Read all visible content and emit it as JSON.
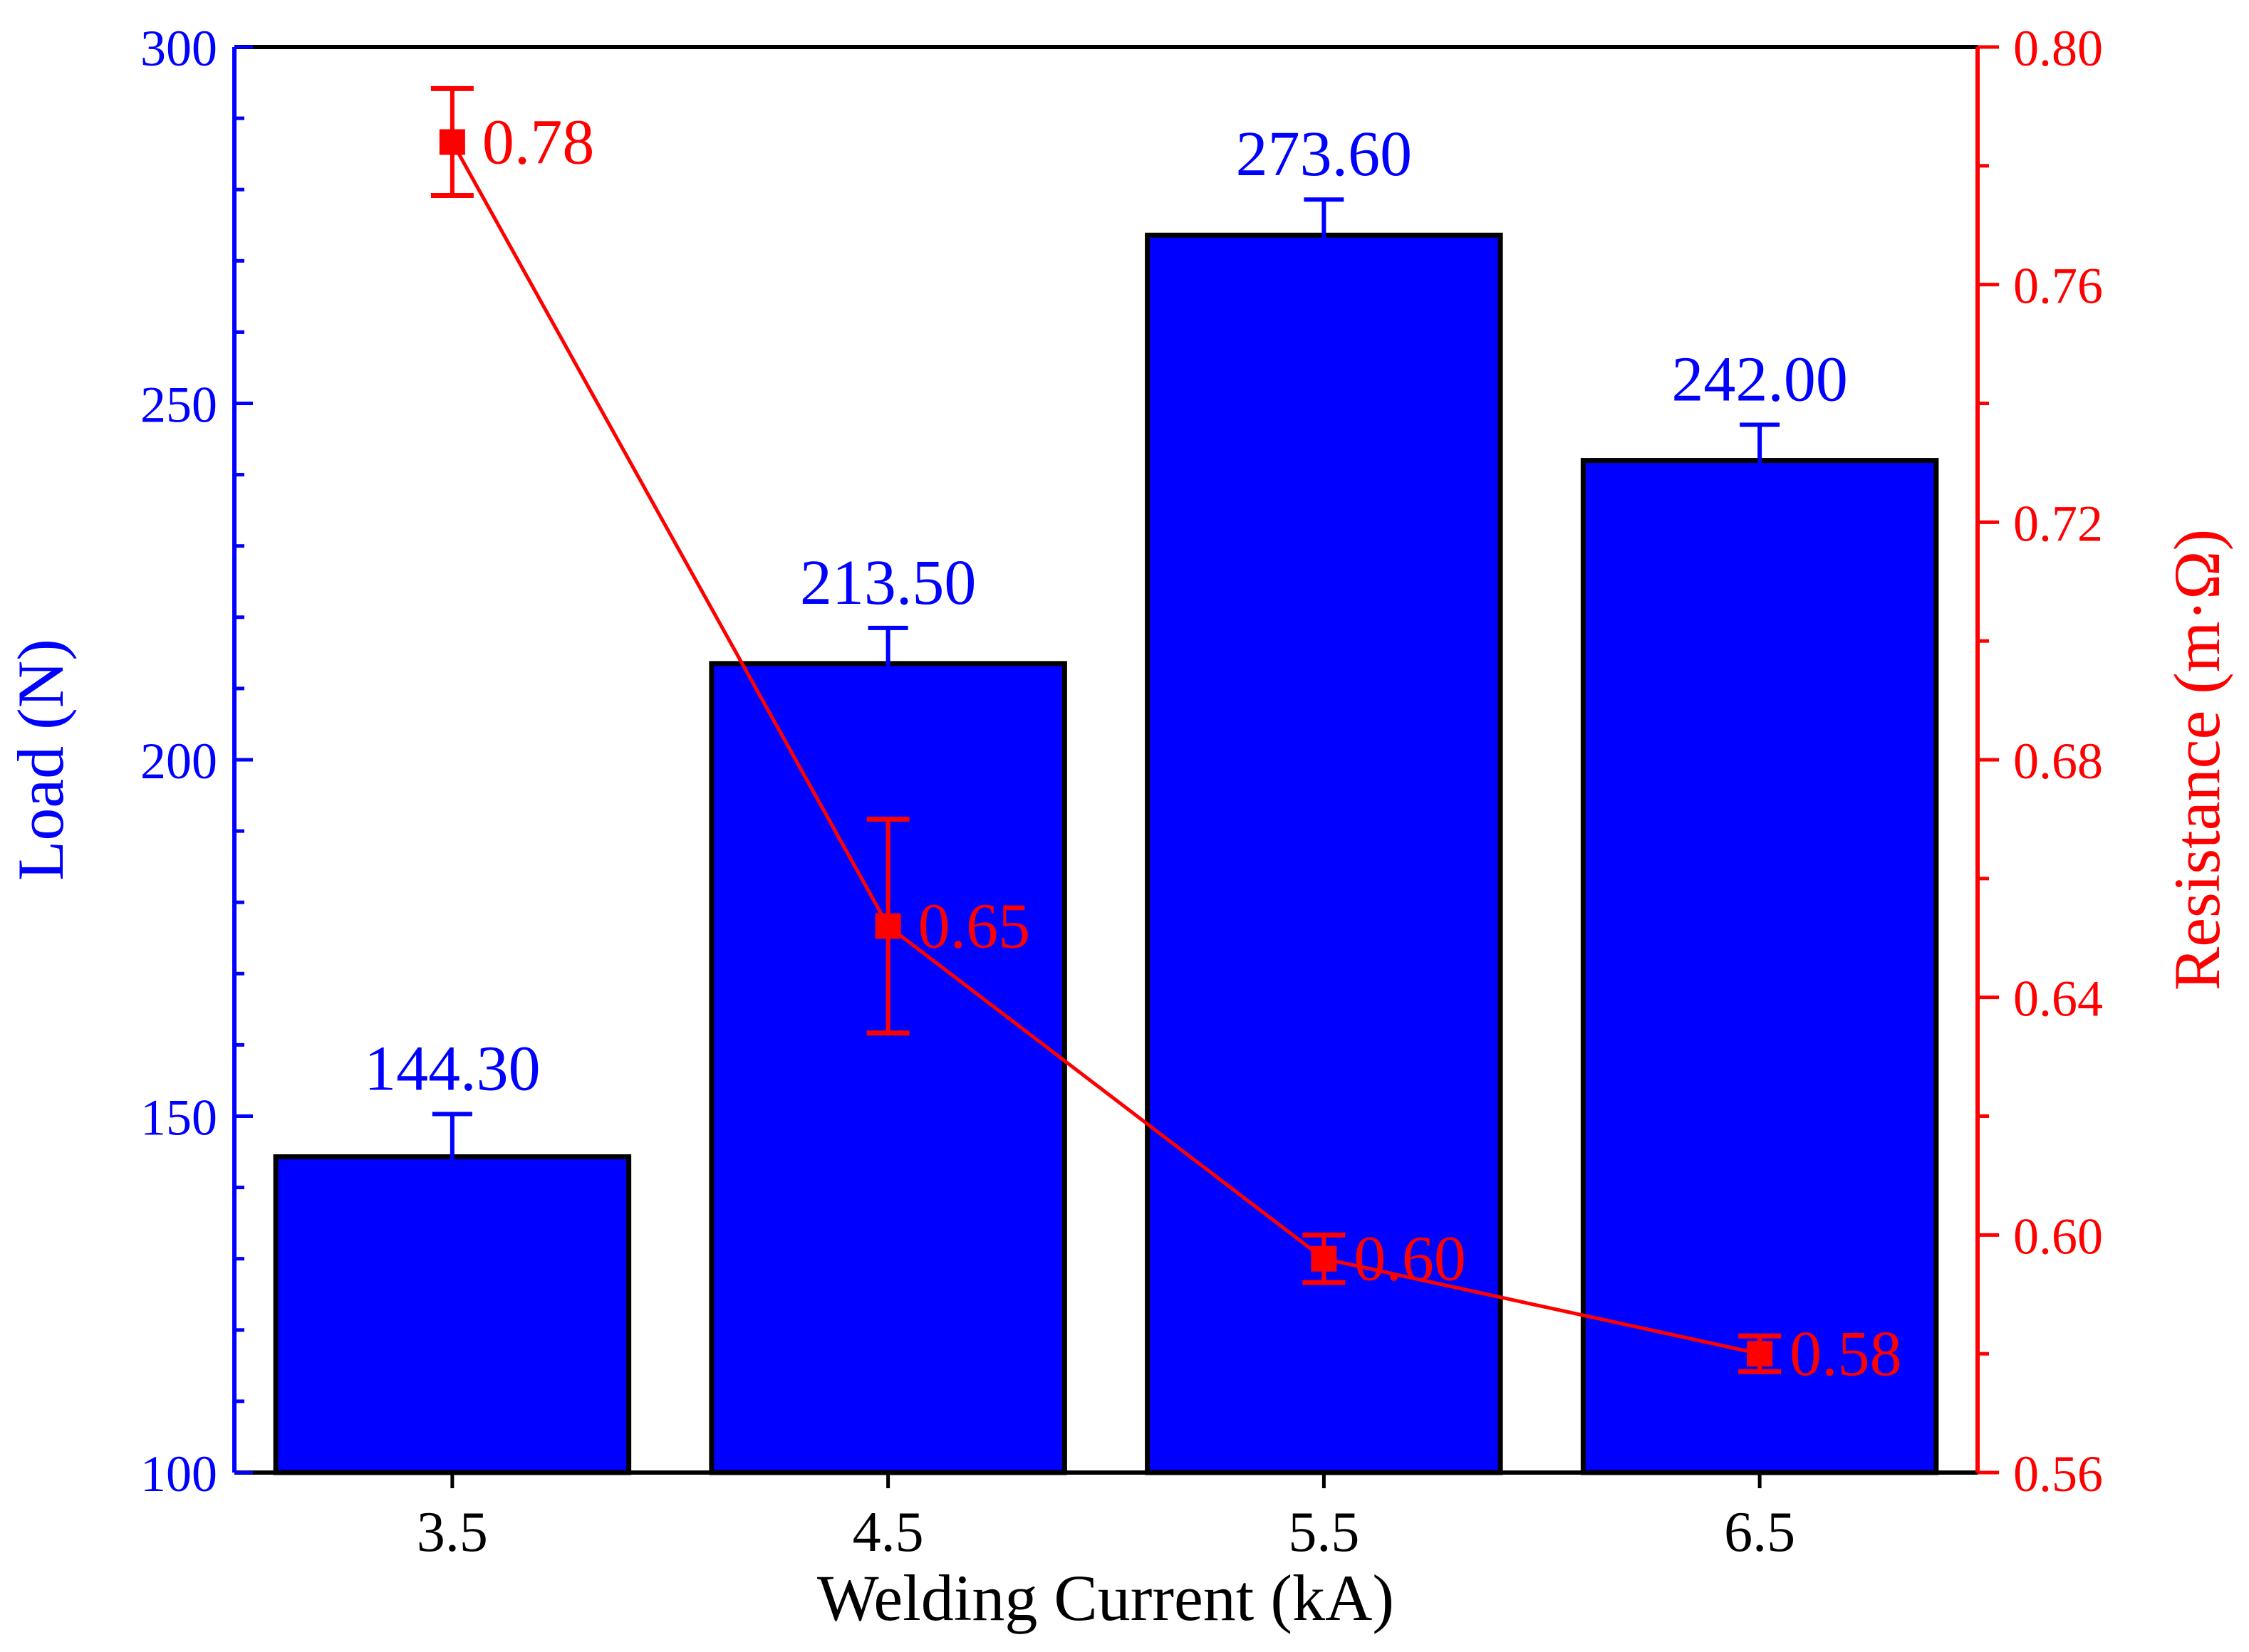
{
  "chart_data": {
    "type": "bar",
    "categories": [
      "3.5",
      "4.5",
      "5.5",
      "6.5"
    ],
    "xlabel": "Welding Current (kA)",
    "y_left": {
      "label": "Load (N)",
      "ylim": [
        100,
        300
      ],
      "ticks": [
        "100",
        "150",
        "200",
        "250",
        "300"
      ],
      "color": "#0000ff"
    },
    "y_right": {
      "label": "Resistance (m·Ω)",
      "ylim": [
        0.56,
        0.8
      ],
      "ticks": [
        "0.56",
        "0.60",
        "0.64",
        "0.68",
        "0.72",
        "0.76",
        "0.80"
      ],
      "color": "#ff0000"
    },
    "series": [
      {
        "name": "Load",
        "axis": "left",
        "values": [
          144.3,
          213.5,
          273.6,
          242.0
        ],
        "error": [
          6.0,
          5.0,
          5.0,
          5.0
        ],
        "labels": [
          "144.30",
          "213.50",
          "273.60",
          "242.00"
        ],
        "color": "#0000ff"
      },
      {
        "name": "Resistance",
        "axis": "right",
        "type": "line",
        "values": [
          0.784,
          0.652,
          0.596,
          0.58
        ],
        "error": [
          0.009,
          0.018,
          0.004,
          0.003
        ],
        "labels": [
          "0.78",
          "0.65",
          "0.60",
          "0.58"
        ],
        "color": "#ff0000"
      }
    ],
    "grid": false,
    "legend": "none"
  }
}
